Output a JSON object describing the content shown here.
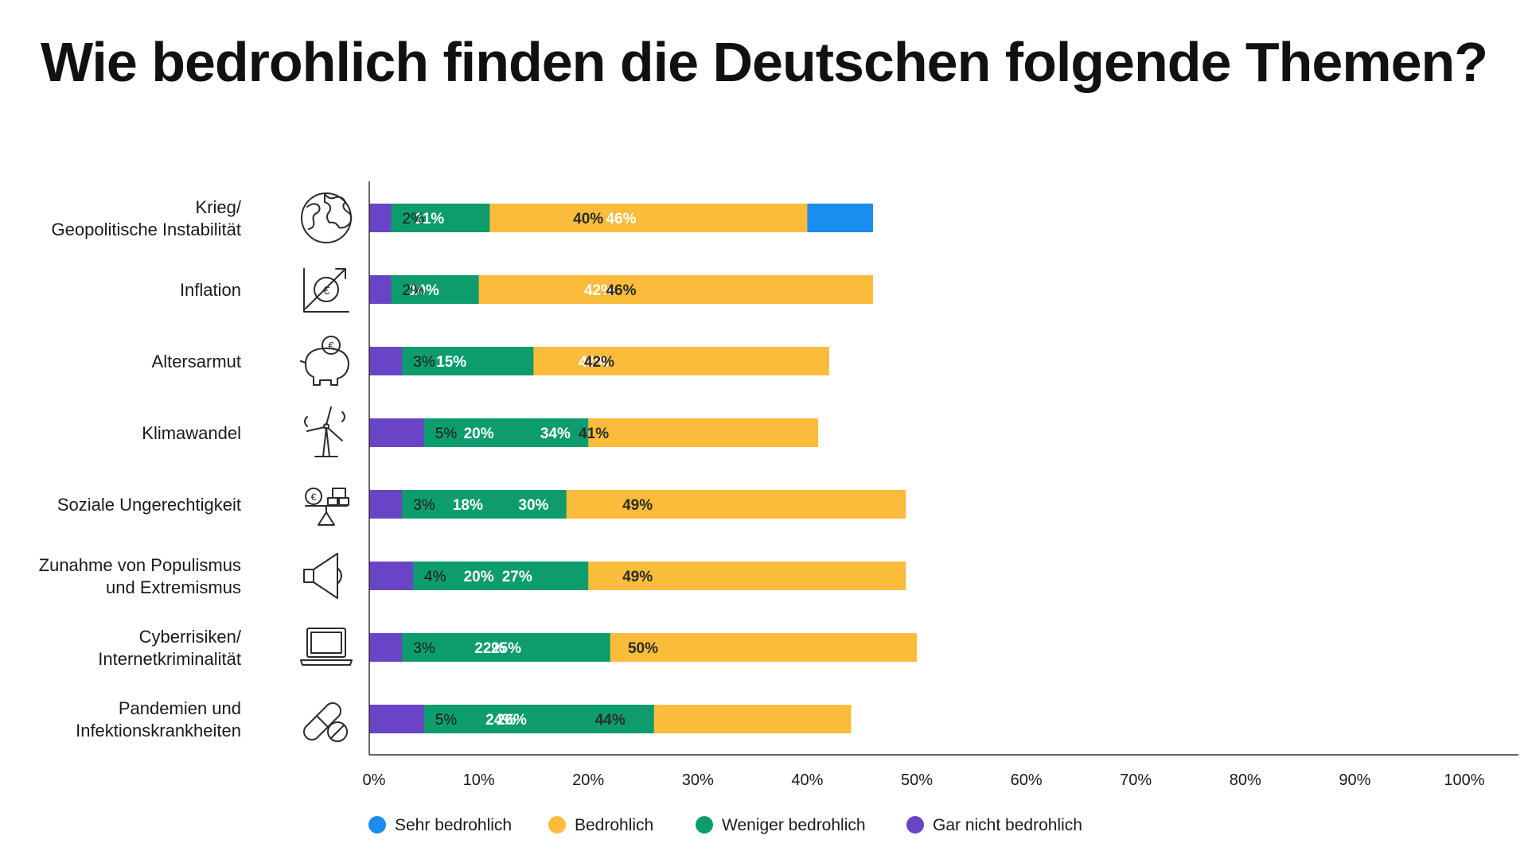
{
  "chart_data": {
    "type": "bar",
    "orientation": "horizontal",
    "stacked": true,
    "title": "Wie bedrohlich finden die Deutschen folgende Themen?",
    "categories": [
      [
        "Krieg/",
        "Geopolitische Instabilität"
      ],
      [
        "Inflation"
      ],
      [
        "Altersarmut"
      ],
      [
        "Klimawandel"
      ],
      [
        "Soziale Ungerechtigkeit"
      ],
      [
        "Zunahme von Populismus",
        "und Extremismus"
      ],
      [
        "Cyberrisiken/",
        "Internetkriminalität"
      ],
      [
        "Pandemien und",
        "Infektionskrankheiten"
      ]
    ],
    "category_icons": [
      "globe-icon",
      "euro-growth-icon",
      "piggy-bank-icon",
      "wind-turbine-icon",
      "balance-scale-icon",
      "megaphone-icon",
      "laptop-icon",
      "pill-icon"
    ],
    "series": [
      {
        "name": "Sehr bedrohlich",
        "color": "#1b8cf0",
        "label_color": "#ffffff",
        "values": [
          46,
          42,
          41,
          34,
          30,
          27,
          25,
          24
        ]
      },
      {
        "name": "Bedrohlich",
        "color": "#fbbc3c",
        "label_color": "#2b2b2b",
        "values": [
          40,
          46,
          42,
          41,
          49,
          49,
          50,
          44
        ]
      },
      {
        "name": "Weniger bedrohlich",
        "color": "#0c9c6e",
        "label_color": "#ffffff",
        "values": [
          11,
          10,
          15,
          20,
          18,
          20,
          22,
          26
        ]
      },
      {
        "name": "Gar nicht bedrohlich",
        "color": "#6a44c6",
        "label_color": "#ffffff",
        "values": [
          2,
          2,
          3,
          5,
          3,
          4,
          3,
          5
        ]
      }
    ],
    "value_suffix": "%",
    "show_last_series_label_outside": true,
    "xlim": [
      0,
      100
    ],
    "xticks": [
      0,
      10,
      20,
      30,
      40,
      50,
      60,
      70,
      80,
      90,
      100
    ],
    "xtick_labels": [
      "0%",
      "10%",
      "20%",
      "30%",
      "40%",
      "50%",
      "60%",
      "70%",
      "80%",
      "90%",
      "100%"
    ],
    "xlabel": "",
    "ylabel": "",
    "grid": false,
    "legend_position": "bottom-left"
  }
}
